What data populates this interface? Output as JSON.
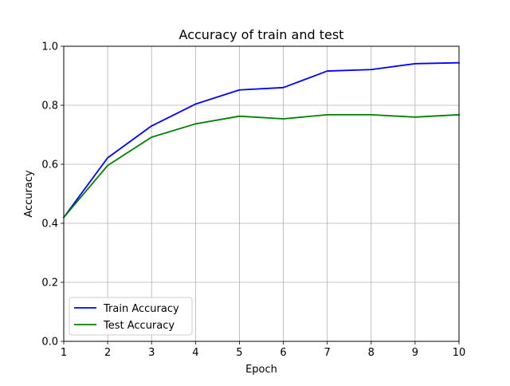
{
  "chart_data": {
    "type": "line",
    "title": "Accuracy of train and test",
    "xlabel": "Epoch",
    "ylabel": "Accuracy",
    "x": [
      1,
      2,
      3,
      4,
      5,
      6,
      7,
      8,
      9,
      10
    ],
    "xlim": [
      1,
      10
    ],
    "ylim": [
      0.0,
      1.0
    ],
    "xticks": [
      "1",
      "2",
      "3",
      "4",
      "5",
      "6",
      "7",
      "8",
      "9",
      "10"
    ],
    "yticks": [
      "0.0",
      "0.2",
      "0.4",
      "0.6",
      "0.8",
      "1.0"
    ],
    "grid": true,
    "legend_position": "lower-left",
    "series": [
      {
        "name": "Train Accuracy",
        "color": "#0000ff",
        "values": [
          0.42,
          0.622,
          0.73,
          0.804,
          0.852,
          0.86,
          0.916,
          0.921,
          0.941,
          0.944
        ]
      },
      {
        "name": "Test Accuracy",
        "color": "#008000",
        "values": [
          0.42,
          0.596,
          0.692,
          0.737,
          0.763,
          0.754,
          0.768,
          0.768,
          0.76,
          0.768
        ]
      }
    ]
  }
}
